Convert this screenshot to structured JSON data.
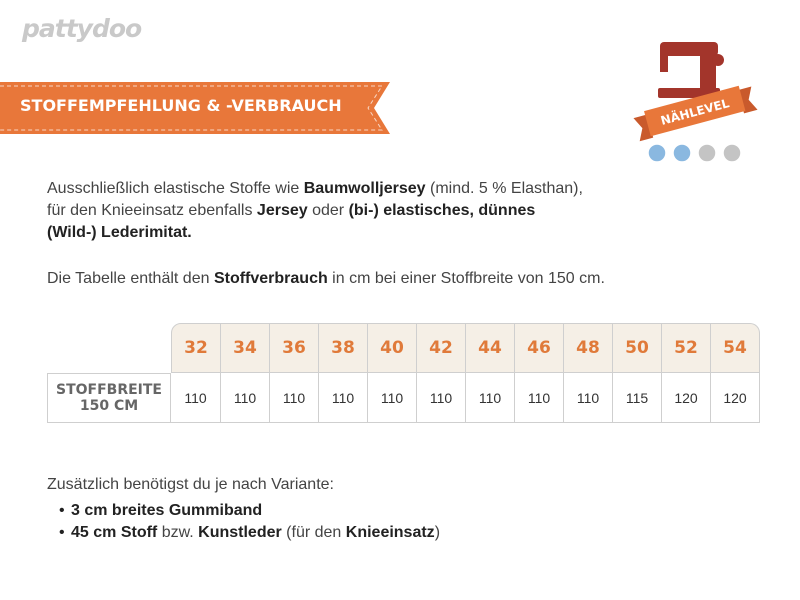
{
  "logo": "pattydoo",
  "banner": "STOFFEMPFEHLUNG & -VERBRAUCH",
  "badge": {
    "label": "NÄHLEVEL"
  },
  "intro": {
    "lines": [
      [
        {
          "text": "Ausschließlich elastische Stoffe wie ",
          "bold": false
        },
        {
          "text": "Baumwolljersey",
          "bold": true
        },
        {
          "text": " (mind. 5 % Elasthan),",
          "bold": false
        }
      ],
      [
        {
          "text": "für den Knieeinsatz ebenfalls ",
          "bold": false
        },
        {
          "text": "Jersey",
          "bold": true
        },
        {
          "text": " oder ",
          "bold": false
        },
        {
          "text": "(bi-) elastisches, dünnes",
          "bold": true
        }
      ],
      [
        {
          "text": "(Wild-) Lederimitat.",
          "bold": true
        }
      ]
    ]
  },
  "note": {
    "lines": [
      [
        {
          "text": "Die Tabelle enthält den ",
          "bold": false
        },
        {
          "text": "Stoffverbrauch",
          "bold": true
        },
        {
          "text": " in cm bei einer Stoffbreite von 150 cm.",
          "bold": false
        }
      ]
    ]
  },
  "table": {
    "header": [
      32,
      34,
      36,
      38,
      40,
      42,
      44,
      46,
      48,
      50,
      52,
      54
    ],
    "row_label": [
      "STOFFBREITE",
      "150 CM"
    ],
    "values": [
      110,
      110,
      110,
      110,
      110,
      110,
      110,
      110,
      110,
      115,
      120,
      120
    ]
  },
  "extras": {
    "intro": "Zusätzlich benötigst du je nach Variante:",
    "items": [
      [
        {
          "text": "3 cm breites Gummiband",
          "bold": true
        }
      ],
      [
        {
          "text": "45 cm Stoff",
          "bold": true
        },
        {
          "text": " bzw. ",
          "bold": false
        },
        {
          "text": "Kunstleder",
          "bold": true
        },
        {
          "text": " (für den ",
          "bold": false
        },
        {
          "text": "Knieeinsatz",
          "bold": true
        },
        {
          "text": ")",
          "bold": false
        }
      ]
    ]
  }
}
